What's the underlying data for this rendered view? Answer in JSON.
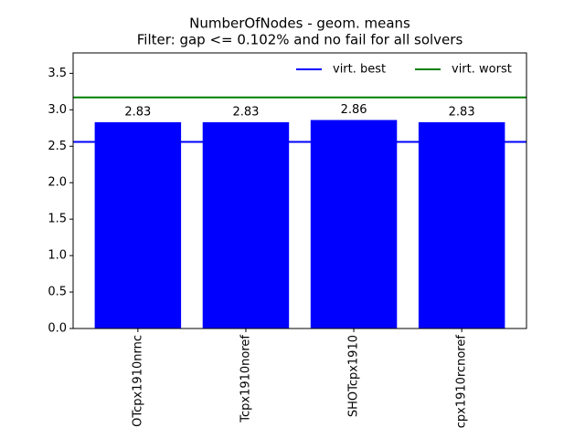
{
  "chart_data": {
    "type": "bar",
    "title": "NumberOfNodes - geom. means",
    "subtitle": "Filter: gap <= 0.102% and no fail for all solvers",
    "categories": [
      "OTcpx1910nrnc",
      "Tcpx1910noref",
      "SHOTcpx1910",
      "cpx1910rcnoref"
    ],
    "values": [
      2.83,
      2.83,
      2.86,
      2.83
    ],
    "color": "#0000ff",
    "reference_lines": [
      {
        "name": "virt. best",
        "color": "#0000ff",
        "value": 2.56
      },
      {
        "name": "virt. worst",
        "color": "#008000",
        "value": 3.17
      }
    ],
    "legend": "upper right",
    "ylim": [
      0,
      3.78
    ],
    "yticks": [
      {
        "value": 0,
        "label": "0.0"
      },
      {
        "value": 0.5,
        "label": "0.5"
      },
      {
        "value": 1,
        "label": "1.0"
      },
      {
        "value": 1.5,
        "label": "1.5"
      },
      {
        "value": 2,
        "label": "2.0"
      },
      {
        "value": 2.5,
        "label": "2.5"
      },
      {
        "value": 3,
        "label": "3.0"
      },
      {
        "value": 3.5,
        "label": "3.5"
      }
    ],
    "grid": false
  }
}
